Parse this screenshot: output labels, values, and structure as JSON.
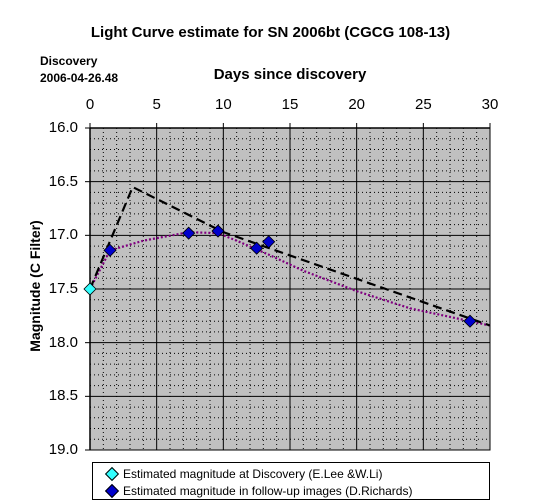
{
  "chart_data": {
    "type": "scatter",
    "title": "Light Curve estimate for SN 2006bt (CGCG 108-13)",
    "discovery_label": [
      "Discovery",
      "2006-04-26.48"
    ],
    "xlabel": "Days since discovery",
    "ylabel": "Magnitude (C Filter)",
    "xlim": [
      0,
      30
    ],
    "ylim": [
      16.0,
      19.0
    ],
    "y_inverted": true,
    "xticks": [
      "0",
      "5",
      "10",
      "15",
      "20",
      "25",
      "30"
    ],
    "yticks": [
      "16.0",
      "16.5",
      "17.0",
      "17.5",
      "18.0",
      "18.5",
      "19.0"
    ],
    "grid": true,
    "plot_background": "#c0c0c0",
    "legend_position": "bottom",
    "series": [
      {
        "name": "Estimated magnitude at Discovery (E.Lee &W.Li)",
        "kind": "points",
        "color": "#33ffff",
        "x": [
          0
        ],
        "y": [
          17.5
        ]
      },
      {
        "name": "Estimated magnitude in follow-up images (D.Richards)",
        "kind": "points",
        "color": "#0000cc",
        "x": [
          1.5,
          7.4,
          9.6,
          12.5,
          13.4,
          28.5
        ],
        "y": [
          17.14,
          16.98,
          16.96,
          17.12,
          17.06,
          17.8
        ]
      },
      {
        "kind": "dashed-line",
        "color": "#000000",
        "x": [
          0,
          3.2,
          10,
          30
        ],
        "y": [
          17.5,
          16.55,
          16.97,
          17.84
        ]
      },
      {
        "kind": "dotted-curve",
        "color": "#800080",
        "x": [
          0,
          1.5,
          4,
          7.4,
          9.6,
          11,
          13.4,
          16,
          20,
          24,
          28.5,
          30
        ],
        "y": [
          17.5,
          17.14,
          17.05,
          16.97,
          16.98,
          17.05,
          17.18,
          17.33,
          17.52,
          17.68,
          17.8,
          17.84
        ]
      }
    ]
  }
}
